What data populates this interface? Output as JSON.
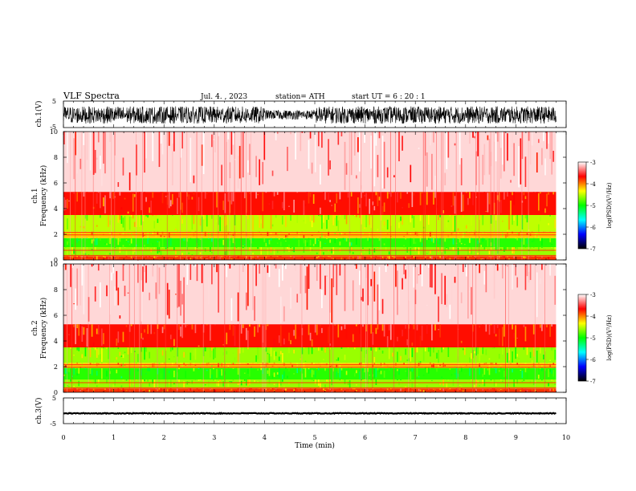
{
  "header": {
    "title": "VLF  Spectra",
    "date": "Jul.  4.  , 2023",
    "station": "station= ATH",
    "start": "start  UT  =    6  : 20 : 1"
  },
  "chart_data": [
    {
      "type": "line",
      "name": "ch1-waveform",
      "ylabel": "ch.1(V)",
      "ylim": [
        -5,
        5
      ],
      "y_ticks": [
        "5",
        "-5"
      ],
      "x_range_min": [
        0,
        9.8
      ],
      "description_values": {
        "amplitude_min_V": -3.5,
        "amplitude_max_V": 3.0,
        "quieter_interval_min": [
          4.0,
          5.0
        ]
      },
      "color": "#000000"
    },
    {
      "type": "heatmap",
      "name": "ch1-spectrogram",
      "ylabel": "ch.1\nFrequency  (kHz)",
      "ylim": [
        0,
        10
      ],
      "y_ticks": [
        "0",
        "2",
        "4",
        "6",
        "8",
        "10"
      ],
      "x_range_min": [
        0,
        9.8
      ],
      "bands": [
        {
          "f_from_khz": 0.0,
          "f_to_khz": 0.3,
          "log_psd": -3.8
        },
        {
          "f_from_khz": 0.3,
          "f_to_khz": 1.0,
          "log_psd": -4.6
        },
        {
          "f_from_khz": 1.0,
          "f_to_khz": 1.7,
          "log_psd": -4.9
        },
        {
          "f_from_khz": 1.7,
          "f_to_khz": 2.2,
          "log_psd": -4.2
        },
        {
          "f_from_khz": 2.2,
          "f_to_khz": 3.5,
          "log_psd": -4.5
        },
        {
          "f_from_khz": 3.5,
          "f_to_khz": 5.3,
          "log_psd": -3.7
        },
        {
          "f_from_khz": 5.3,
          "f_to_khz": 10.0,
          "log_psd": -3.3
        }
      ]
    },
    {
      "type": "heatmap",
      "name": "ch2-spectrogram",
      "ylabel": "ch.2\nFrequency  (kHz)",
      "ylim": [
        0,
        10
      ],
      "y_ticks": [
        "0",
        "2",
        "4",
        "6",
        "8",
        "10"
      ],
      "x_range_min": [
        0,
        9.8
      ],
      "bands": [
        {
          "f_from_khz": 0.0,
          "f_to_khz": 0.3,
          "log_psd": -3.8
        },
        {
          "f_from_khz": 0.3,
          "f_to_khz": 1.0,
          "log_psd": -4.6
        },
        {
          "f_from_khz": 1.0,
          "f_to_khz": 1.9,
          "log_psd": -4.9
        },
        {
          "f_from_khz": 1.9,
          "f_to_khz": 2.3,
          "log_psd": -4.2
        },
        {
          "f_from_khz": 2.3,
          "f_to_khz": 3.5,
          "log_psd": -4.6
        },
        {
          "f_from_khz": 3.5,
          "f_to_khz": 5.3,
          "log_psd": -3.7
        },
        {
          "f_from_khz": 5.3,
          "f_to_khz": 10.0,
          "log_psd": -3.3
        }
      ]
    },
    {
      "type": "line",
      "name": "ch3-waveform",
      "ylabel": "ch.3(V)",
      "ylim": [
        -5,
        5
      ],
      "y_ticks": [
        "5",
        "-5"
      ],
      "x_range_min": [
        0,
        9.8
      ],
      "description_values": {
        "baseline_V": -1.0,
        "amplitude_V": 0.3
      },
      "color": "#000000"
    }
  ],
  "x_axis": {
    "label": "Time  (min)",
    "xlim": [
      0,
      10
    ],
    "ticks": [
      "0",
      "1",
      "2",
      "3",
      "4",
      "5",
      "6",
      "7",
      "8",
      "9",
      "10"
    ]
  },
  "colorbar": {
    "label": "log(PSD)(V²/Hz)",
    "range": [
      -7,
      -3
    ],
    "ticks": [
      "-3",
      "-4",
      "-5",
      "-6",
      "-7"
    ],
    "stops": [
      "#000000",
      "#0000ff",
      "#00ffff",
      "#00ff00",
      "#ffff00",
      "#ff0000",
      "#ffffff"
    ]
  }
}
